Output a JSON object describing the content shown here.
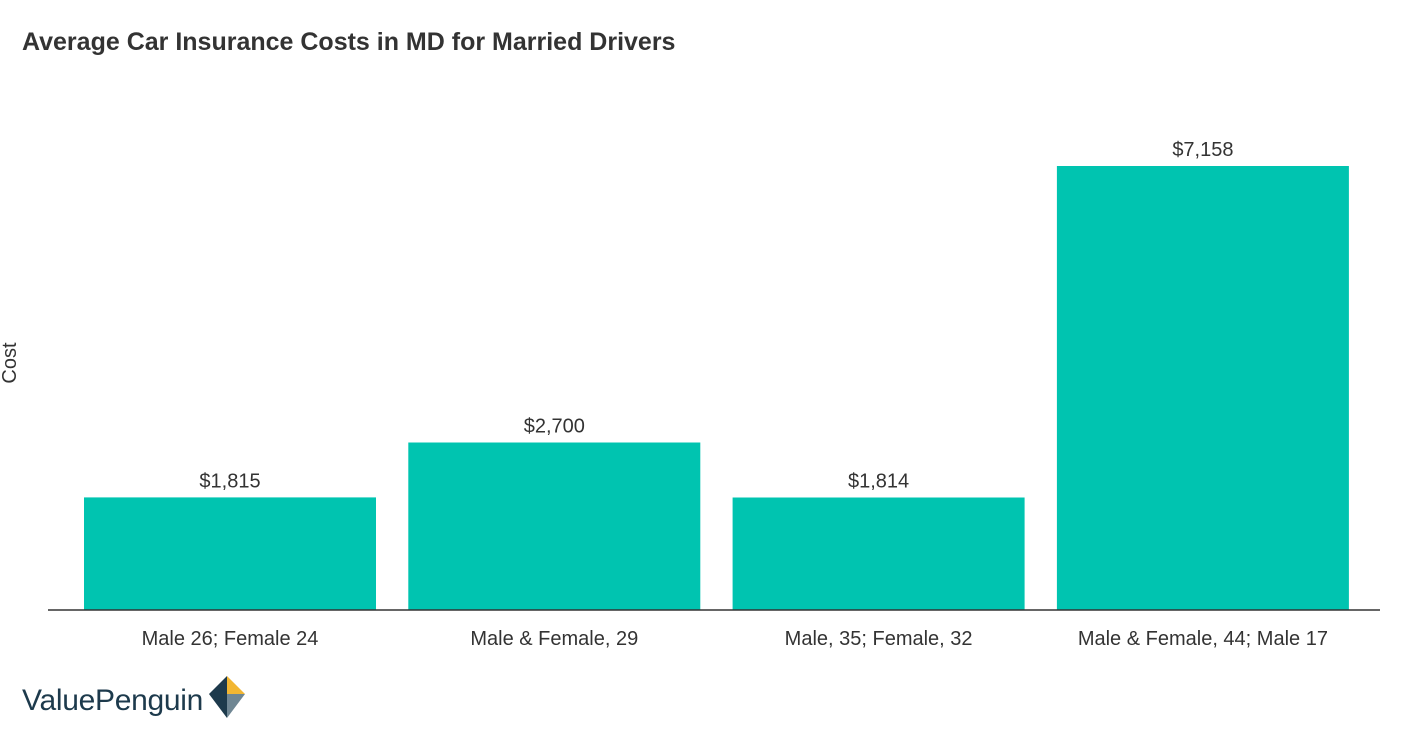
{
  "title": "Average Car Insurance Costs in MD for Married Drivers",
  "logo": {
    "text": "ValuePenguin"
  },
  "colors": {
    "bar": "#00c4b0",
    "axis": "#333333",
    "text": "#333333",
    "logo_navy": "#1d3a4c",
    "logo_gold": "#f2b632"
  },
  "chart_data": {
    "type": "bar",
    "title": "Average Car Insurance Costs in MD for Married Drivers",
    "xlabel": "",
    "ylabel": "Cost",
    "categories": [
      "Male 26; Female 24",
      "Male & Female, 29",
      "Male, 35; Female, 32",
      "Male & Female, 44; Male 17"
    ],
    "values": [
      1815,
      2700,
      1814,
      7158
    ],
    "value_labels": [
      "$1,815",
      "$2,700",
      "$1,814",
      "$7,158"
    ],
    "ylim": [
      0,
      7158
    ],
    "grid": false,
    "legend": "none"
  }
}
